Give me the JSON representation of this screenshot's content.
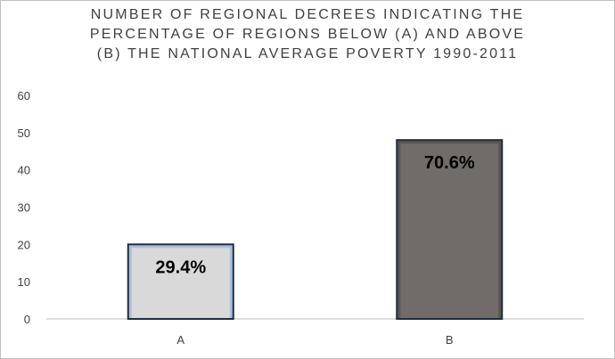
{
  "chart_data": {
    "type": "bar",
    "title_lines": [
      "NUMBER OF REGIONAL DECREES INDICATING THE",
      "PERCENTAGE OF REGIONS BELOW (A) AND ABOVE",
      "(B) THE NATIONAL AVERAGE POVERTY 1990-2011"
    ],
    "categories": [
      "A",
      "B"
    ],
    "values": [
      20,
      48
    ],
    "data_labels": [
      "29.4%",
      "70.6%"
    ],
    "colors": [
      "#d9d9d9",
      "#716c6a"
    ],
    "bar_border_colors": [
      "#1f2d3f",
      "#1f2d3f"
    ],
    "bar_inner_glow": [
      "#a9c0dc",
      "#5a5554"
    ],
    "ylim": [
      0,
      60
    ],
    "yticks": [
      0,
      10,
      20,
      30,
      40,
      50,
      60
    ],
    "grid": false,
    "legend": "none"
  }
}
